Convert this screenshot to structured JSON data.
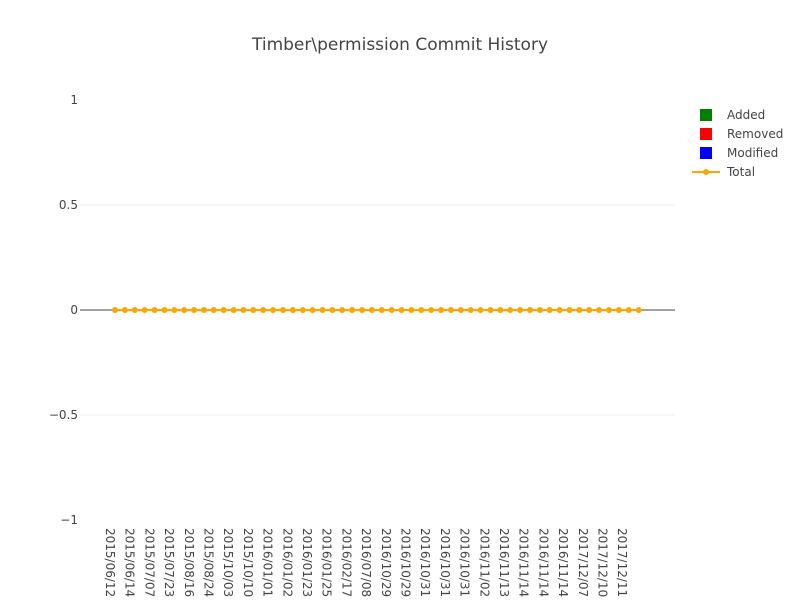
{
  "chart_data": {
    "type": "line",
    "title": "Timber\\permission Commit History",
    "xlabel": "",
    "ylabel": "",
    "ylim": [
      -1,
      1
    ],
    "yticks": [
      {
        "value": 1,
        "label": "1"
      },
      {
        "value": 0.5,
        "label": "0.5"
      },
      {
        "value": 0,
        "label": "0"
      },
      {
        "value": -0.5,
        "label": "−0.5"
      },
      {
        "value": -1,
        "label": "−1"
      }
    ],
    "x_tick_labels": [
      "2015/06/12",
      "2015/06/14",
      "2015/07/07",
      "2015/07/23",
      "2015/08/16",
      "2015/08/24",
      "2015/10/03",
      "2015/10/10",
      "2016/01/01",
      "2016/01/02",
      "2016/01/23",
      "2016/01/25",
      "2016/02/17",
      "2016/07/08",
      "2016/10/29",
      "2016/10/29",
      "2016/10/31",
      "2016/10/31",
      "2016/10/31",
      "2016/11/02",
      "2016/11/13",
      "2016/11/14",
      "2016/11/14",
      "2016/11/14",
      "2017/12/07",
      "2017/12/10",
      "2017/12/11"
    ],
    "point_count": 54,
    "series": [
      {
        "name": "Added",
        "kind": "bar",
        "color": "#008000",
        "values": []
      },
      {
        "name": "Removed",
        "kind": "bar",
        "color": "#ff0000",
        "values": []
      },
      {
        "name": "Modified",
        "kind": "bar",
        "color": "#0000ff",
        "values": []
      },
      {
        "name": "Total",
        "kind": "line",
        "color": "#ffa500",
        "value": 0
      }
    ],
    "grid": true,
    "legend_position": "top-right"
  }
}
